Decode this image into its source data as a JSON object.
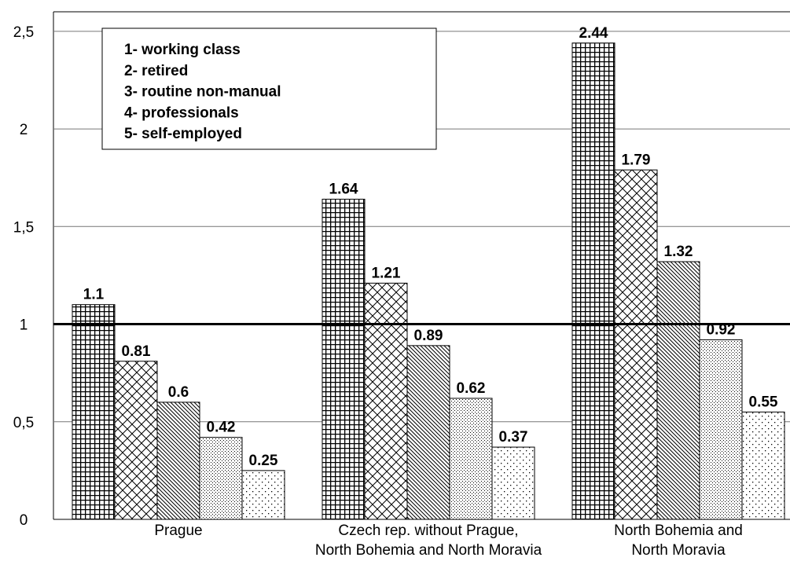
{
  "chart_data": {
    "type": "bar",
    "categories": [
      "Prague",
      "Czech rep. without Prague,\nNorth Bohemia and North Moravia",
      "North Bohemia and\nNorth Moravia"
    ],
    "series": [
      {
        "name": "1- working class",
        "color": "#000000",
        "pattern": "grid",
        "values": [
          1.1,
          1.64,
          2.44
        ]
      },
      {
        "name": "2- retired",
        "color": "#000000",
        "pattern": "crosshatch",
        "values": [
          0.81,
          1.21,
          1.79
        ]
      },
      {
        "name": "3- routine non-manual",
        "color": "#000000",
        "pattern": "diagonal",
        "values": [
          0.6,
          0.89,
          1.32
        ]
      },
      {
        "name": "4- professionals",
        "color": "#000000",
        "pattern": "dense-dots",
        "values": [
          0.42,
          0.62,
          0.92
        ]
      },
      {
        "name": "5- self-employed",
        "color": "#000000",
        "pattern": "sparse-dots",
        "values": [
          0.25,
          0.37,
          0.55
        ]
      }
    ],
    "ylim": [
      0,
      2.6
    ],
    "yticks": [
      0,
      {
        "value": 0.5,
        "label": "0,5"
      },
      1,
      {
        "value": 1.5,
        "label": "1,5"
      },
      2,
      {
        "value": 2.5,
        "label": "2,5"
      }
    ],
    "grid": true,
    "reference_line": 1,
    "legend": "top-left"
  }
}
